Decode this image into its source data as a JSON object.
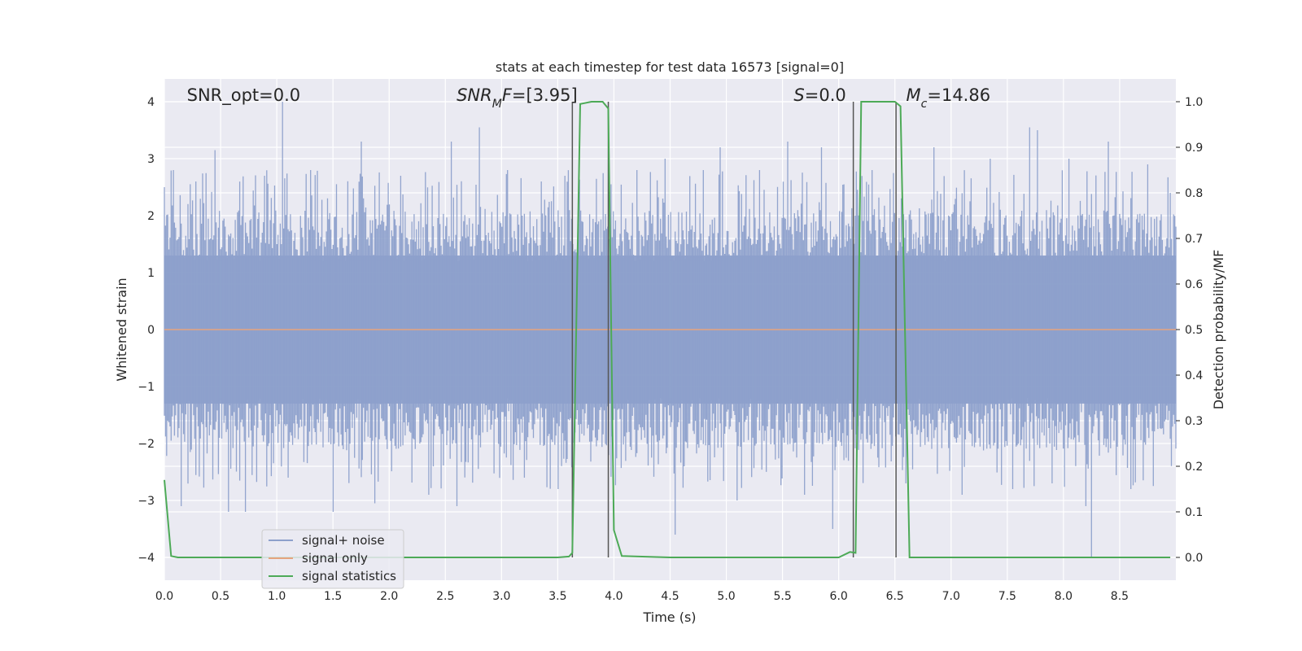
{
  "chart_data": {
    "type": "line",
    "title": "stats at each timestep for test data 16573 [signal=0]",
    "xlabel": "Time (s)",
    "ylabel_left": "Whitened strain",
    "ylabel_right": "Detection probability/MF",
    "xlim": [
      0.0,
      9.0
    ],
    "ylim_left": [
      -4.4,
      4.4
    ],
    "ylim_right": [
      -0.05,
      1.05
    ],
    "x_ticks": [
      "0.0",
      "0.5",
      "1.0",
      "1.5",
      "2.0",
      "2.5",
      "3.0",
      "3.5",
      "4.0",
      "4.5",
      "5.0",
      "5.5",
      "6.0",
      "6.5",
      "7.0",
      "7.5",
      "8.0",
      "8.5"
    ],
    "y_left_ticks": [
      "−4",
      "−3",
      "−2",
      "−1",
      "0",
      "1",
      "2",
      "3",
      "4"
    ],
    "y_right_ticks": [
      "0.0",
      "0.1",
      "0.2",
      "0.3",
      "0.4",
      "0.5",
      "0.6",
      "0.7",
      "0.8",
      "0.9",
      "1.0"
    ],
    "grid": true,
    "legend_position": "lower-left",
    "annotations": [
      {
        "parts": [
          {
            "text": "SNR_opt=0.0",
            "style": "normal"
          }
        ],
        "x": 0.2
      },
      {
        "parts": [
          {
            "text": "SNR",
            "style": "italic"
          },
          {
            "text": "M",
            "style": "italic-sub"
          },
          {
            "text": "F",
            "style": "italic"
          },
          {
            "text": "=[3.95]",
            "style": "normal"
          }
        ],
        "x": 2.6
      },
      {
        "parts": [
          {
            "text": "S",
            "style": "italic"
          },
          {
            "text": "=0.0",
            "style": "normal"
          }
        ],
        "x": 5.6
      },
      {
        "parts": [
          {
            "text": "M",
            "style": "italic"
          },
          {
            "text": "c",
            "style": "italic-sub"
          },
          {
            "text": "=14.86",
            "style": "normal"
          }
        ],
        "x": 6.6
      }
    ],
    "series": [
      {
        "name": "signal+ noise",
        "axis": "left",
        "color": "#8da0cb",
        "description_values": "whitened noise samples, approx. between -3.5 and 4.0"
      },
      {
        "name": "signal only",
        "axis": "left",
        "color": "#e5a47e",
        "x": [
          0.0,
          9.0
        ],
        "y": [
          0.0,
          0.0
        ]
      },
      {
        "name": "signal statistics",
        "axis": "right",
        "color": "#4daa57",
        "x": [
          0.0,
          0.06,
          0.12,
          0.5,
          1.0,
          1.5,
          2.0,
          2.5,
          3.0,
          3.5,
          3.6,
          3.63,
          3.7,
          3.8,
          3.9,
          3.95,
          4.0,
          4.07,
          4.5,
          5.0,
          5.5,
          6.0,
          6.1,
          6.15,
          6.2,
          6.3,
          6.4,
          6.5,
          6.55,
          6.63,
          7.0,
          7.5,
          8.0,
          8.5,
          8.95
        ],
        "y": [
          0.17,
          0.003,
          0.0,
          0.0,
          0.0,
          0.0,
          0.0,
          0.0,
          0.0,
          0.0,
          0.002,
          0.01,
          0.995,
          1.0,
          1.0,
          0.985,
          0.06,
          0.003,
          0.0,
          0.0,
          0.0,
          0.0,
          0.012,
          0.01,
          1.0,
          1.0,
          1.0,
          1.0,
          0.99,
          0.0,
          0.0,
          0.0,
          0.0,
          0.0,
          0.0
        ]
      }
    ],
    "vertical_lines": [
      {
        "x": 3.63,
        "color": "#555555"
      },
      {
        "x": 3.95,
        "color": "#555555"
      },
      {
        "x": 6.13,
        "color": "#555555"
      },
      {
        "x": 6.51,
        "color": "#555555"
      }
    ],
    "noise_spikes": [
      {
        "x": 0.0,
        "y": 2.5
      },
      {
        "x": 0.08,
        "y": 2.8
      },
      {
        "x": 0.15,
        "y": -3.1
      },
      {
        "x": 0.28,
        "y": 2.6
      },
      {
        "x": 0.45,
        "y": 3.15
      },
      {
        "x": 0.57,
        "y": -3.2
      },
      {
        "x": 0.72,
        "y": -3.2
      },
      {
        "x": 0.89,
        "y": 2.7
      },
      {
        "x": 1.05,
        "y": 4.0
      },
      {
        "x": 1.1,
        "y": -2.6
      },
      {
        "x": 1.3,
        "y": 2.8
      },
      {
        "x": 1.5,
        "y": -3.2
      },
      {
        "x": 1.75,
        "y": 3.3
      },
      {
        "x": 1.87,
        "y": -3.05
      },
      {
        "x": 2.1,
        "y": 2.7
      },
      {
        "x": 2.35,
        "y": -2.9
      },
      {
        "x": 2.55,
        "y": 3.3
      },
      {
        "x": 2.6,
        "y": -3.1
      },
      {
        "x": 2.8,
        "y": 3.55
      },
      {
        "x": 3.05,
        "y": 2.8
      },
      {
        "x": 3.2,
        "y": -2.6
      },
      {
        "x": 3.35,
        "y": 2.6
      },
      {
        "x": 3.5,
        "y": -2.8
      },
      {
        "x": 4.2,
        "y": 2.8
      },
      {
        "x": 4.45,
        "y": 3.0
      },
      {
        "x": 4.55,
        "y": -3.6
      },
      {
        "x": 4.8,
        "y": 2.8
      },
      {
        "x": 4.95,
        "y": 3.2
      },
      {
        "x": 5.1,
        "y": -3.0
      },
      {
        "x": 5.3,
        "y": 2.8
      },
      {
        "x": 5.55,
        "y": 3.3
      },
      {
        "x": 5.7,
        "y": -2.9
      },
      {
        "x": 5.85,
        "y": 3.2
      },
      {
        "x": 5.95,
        "y": -3.5
      },
      {
        "x": 6.3,
        "y": 2.8
      },
      {
        "x": 6.6,
        "y": -2.7
      },
      {
        "x": 6.85,
        "y": 3.2
      },
      {
        "x": 7.1,
        "y": -2.9
      },
      {
        "x": 7.35,
        "y": 3.0
      },
      {
        "x": 7.55,
        "y": -2.8
      },
      {
        "x": 7.7,
        "y": 3.55
      },
      {
        "x": 7.77,
        "y": 3.5
      },
      {
        "x": 7.9,
        "y": -2.7
      },
      {
        "x": 8.05,
        "y": 3.0
      },
      {
        "x": 8.2,
        "y": -3.1
      },
      {
        "x": 8.25,
        "y": -4.0
      },
      {
        "x": 8.4,
        "y": 3.3
      },
      {
        "x": 8.6,
        "y": -2.8
      },
      {
        "x": 8.75,
        "y": 2.9
      },
      {
        "x": 8.95,
        "y": 2.4
      }
    ]
  }
}
